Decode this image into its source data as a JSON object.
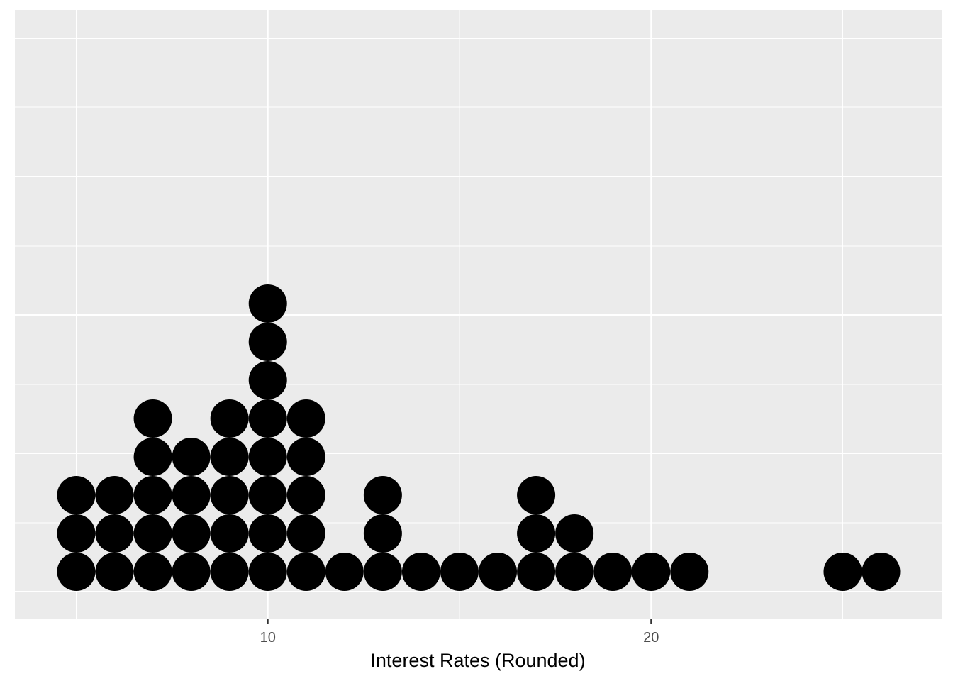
{
  "chart_data": {
    "type": "dotplot",
    "title": "",
    "xlabel": "Interest Rates (Rounded)",
    "ylabel": "",
    "xlim": [
      3.4,
      27.6
    ],
    "x_major_ticks": [
      10,
      20
    ],
    "x_tick_labels": [
      "10",
      "20"
    ],
    "x_minor_ticks": [
      5,
      15,
      25
    ],
    "y_axis_labels_shown": false,
    "grid": true,
    "dot_color": "#000000",
    "panel_background": "#ebebeb",
    "grid_color": "#ffffff",
    "points": [
      {
        "x": 5,
        "count": 3
      },
      {
        "x": 6,
        "count": 3
      },
      {
        "x": 7,
        "count": 5
      },
      {
        "x": 8,
        "count": 4
      },
      {
        "x": 9,
        "count": 5
      },
      {
        "x": 10,
        "count": 8
      },
      {
        "x": 11,
        "count": 5
      },
      {
        "x": 12,
        "count": 1
      },
      {
        "x": 13,
        "count": 3
      },
      {
        "x": 14,
        "count": 1
      },
      {
        "x": 15,
        "count": 1
      },
      {
        "x": 16,
        "count": 1
      },
      {
        "x": 17,
        "count": 3
      },
      {
        "x": 18,
        "count": 2
      },
      {
        "x": 19,
        "count": 1
      },
      {
        "x": 20,
        "count": 1
      },
      {
        "x": 21,
        "count": 1
      },
      {
        "x": 25,
        "count": 1
      },
      {
        "x": 26,
        "count": 1
      }
    ]
  }
}
